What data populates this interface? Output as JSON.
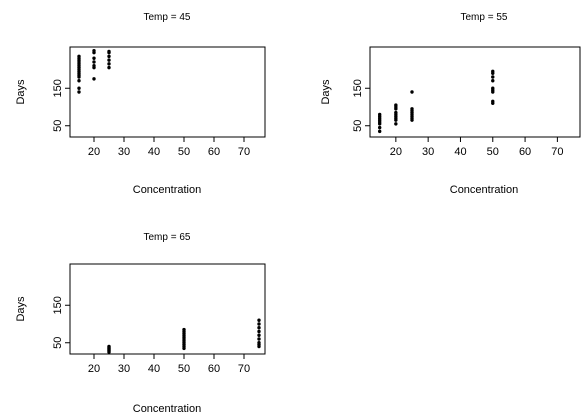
{
  "chart_data": [
    {
      "type": "scatter",
      "title": "Temp = 45",
      "xlabel": "Concentration",
      "ylabel": "Days",
      "xlim": [
        12,
        77
      ],
      "ylim": [
        20,
        260
      ],
      "xticks": [
        20,
        30,
        40,
        50,
        60,
        70
      ],
      "yticks": [
        50,
        150
      ],
      "grid": false,
      "points": [
        [
          15,
          140
        ],
        [
          15,
          150
        ],
        [
          15,
          170
        ],
        [
          15,
          180
        ],
        [
          15,
          185
        ],
        [
          15,
          190
        ],
        [
          15,
          195
        ],
        [
          15,
          200
        ],
        [
          15,
          205
        ],
        [
          15,
          210
        ],
        [
          15,
          215
        ],
        [
          15,
          220
        ],
        [
          15,
          225
        ],
        [
          15,
          230
        ],
        [
          15,
          235
        ],
        [
          20,
          175
        ],
        [
          20,
          205
        ],
        [
          20,
          210
        ],
        [
          20,
          220
        ],
        [
          20,
          230
        ],
        [
          20,
          245
        ],
        [
          20,
          250
        ],
        [
          25,
          205
        ],
        [
          25,
          215
        ],
        [
          25,
          225
        ],
        [
          25,
          235
        ],
        [
          25,
          245
        ],
        [
          25,
          248
        ]
      ]
    },
    {
      "type": "scatter",
      "title": "Temp = 55",
      "xlabel": "Concentration",
      "ylabel": "Days",
      "xlim": [
        12,
        77
      ],
      "ylim": [
        20,
        260
      ],
      "xticks": [
        20,
        30,
        40,
        50,
        60,
        70
      ],
      "yticks": [
        50,
        150
      ],
      "grid": false,
      "points": [
        [
          15,
          35
        ],
        [
          15,
          45
        ],
        [
          15,
          55
        ],
        [
          15,
          60
        ],
        [
          15,
          65
        ],
        [
          15,
          70
        ],
        [
          15,
          75
        ],
        [
          15,
          80
        ],
        [
          20,
          55
        ],
        [
          20,
          65
        ],
        [
          20,
          70
        ],
        [
          20,
          75
        ],
        [
          20,
          80
        ],
        [
          20,
          85
        ],
        [
          20,
          95
        ],
        [
          20,
          100
        ],
        [
          20,
          105
        ],
        [
          25,
          65
        ],
        [
          25,
          70
        ],
        [
          25,
          75
        ],
        [
          25,
          80
        ],
        [
          25,
          85
        ],
        [
          25,
          90
        ],
        [
          25,
          95
        ],
        [
          25,
          140
        ],
        [
          50,
          110
        ],
        [
          50,
          115
        ],
        [
          50,
          140
        ],
        [
          50,
          145
        ],
        [
          50,
          150
        ],
        [
          50,
          170
        ],
        [
          50,
          180
        ],
        [
          50,
          190
        ],
        [
          50,
          195
        ]
      ]
    },
    {
      "type": "scatter",
      "title": "Temp = 65",
      "xlabel": "Concentration",
      "ylabel": "Days",
      "xlim": [
        12,
        77
      ],
      "ylim": [
        20,
        260
      ],
      "xticks": [
        20,
        30,
        40,
        50,
        60,
        70
      ],
      "yticks": [
        50,
        150
      ],
      "grid": false,
      "points": [
        [
          25,
          25
        ],
        [
          25,
          28
        ],
        [
          25,
          30
        ],
        [
          25,
          33
        ],
        [
          25,
          35
        ],
        [
          25,
          38
        ],
        [
          25,
          40
        ],
        [
          50,
          35
        ],
        [
          50,
          40
        ],
        [
          50,
          45
        ],
        [
          50,
          50
        ],
        [
          50,
          55
        ],
        [
          50,
          60
        ],
        [
          50,
          65
        ],
        [
          50,
          70
        ],
        [
          50,
          75
        ],
        [
          50,
          80
        ],
        [
          50,
          85
        ],
        [
          75,
          40
        ],
        [
          75,
          45
        ],
        [
          75,
          50
        ],
        [
          75,
          60
        ],
        [
          75,
          70
        ],
        [
          75,
          80
        ],
        [
          75,
          90
        ],
        [
          75,
          100
        ],
        [
          75,
          110
        ]
      ]
    }
  ]
}
